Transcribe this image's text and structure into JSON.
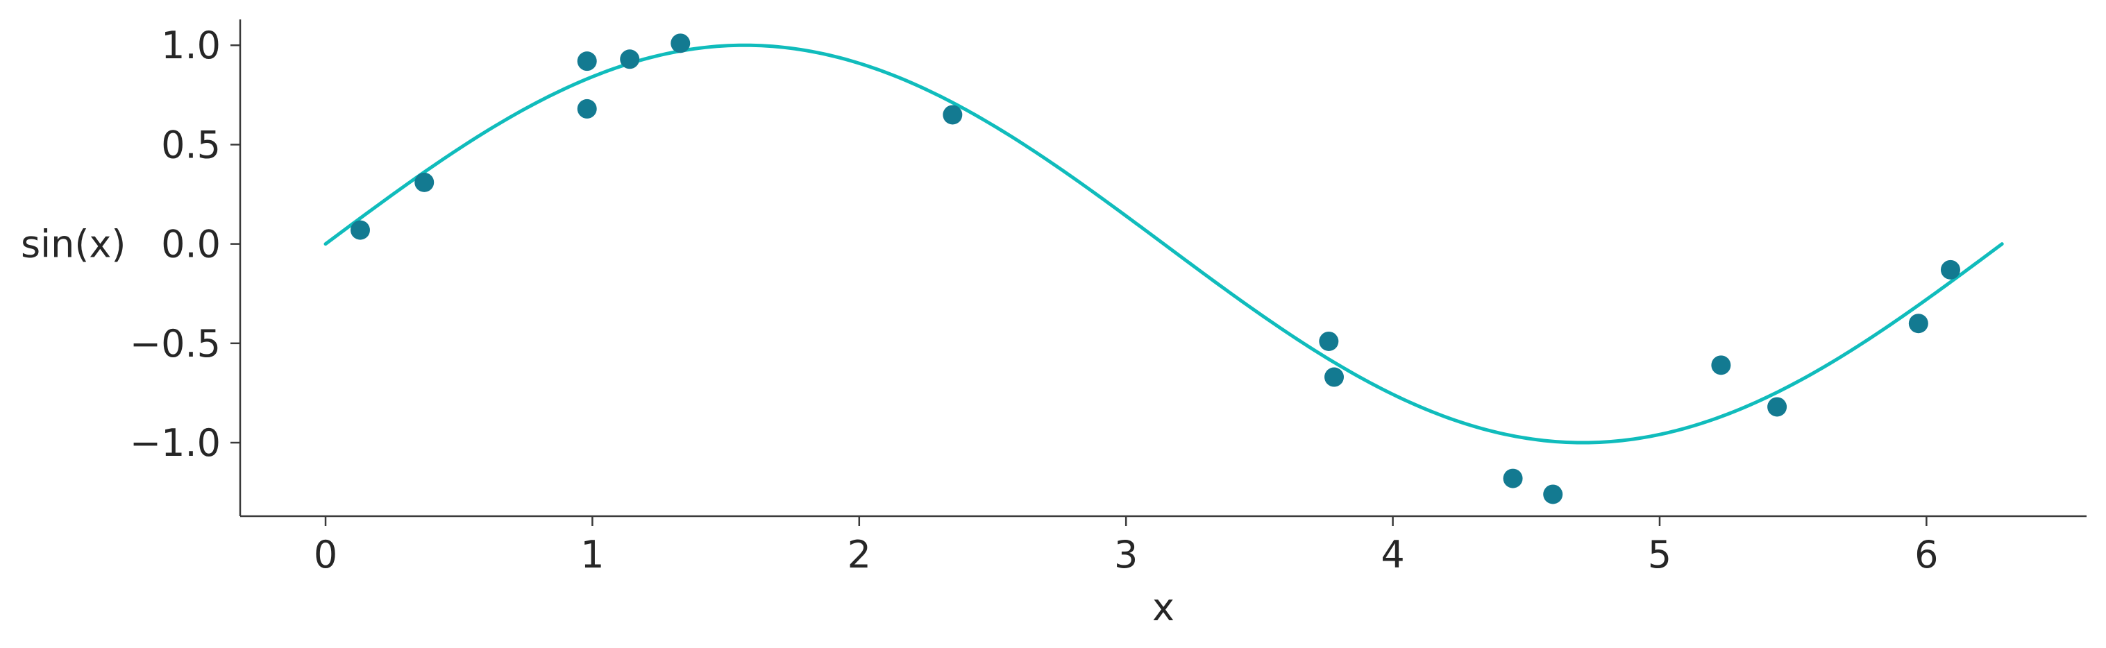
{
  "chart_data": {
    "type": "scatter",
    "xlabel": "x",
    "ylabel": "sin(x)",
    "xlim": [
      -0.32,
      6.6
    ],
    "ylim": [
      -1.37,
      1.13
    ],
    "x_ticks": [
      0,
      1,
      2,
      3,
      4,
      5,
      6
    ],
    "x_tick_labels": [
      "0",
      "1",
      "2",
      "3",
      "4",
      "5",
      "6"
    ],
    "y_ticks": [
      1.0,
      0.5,
      0.0,
      -0.5,
      -1.0
    ],
    "y_tick_labels": [
      "1.0",
      "0.5",
      "0.0",
      "−0.5",
      "−1.0"
    ],
    "grid": false,
    "series": [
      {
        "kind": "line",
        "color": "#10bcbc",
        "function": "sin",
        "x_range": [
          0,
          6.2832
        ]
      },
      {
        "kind": "scatter",
        "color": "#137a91",
        "points": [
          {
            "x": 0.13,
            "y": 0.07
          },
          {
            "x": 0.37,
            "y": 0.31
          },
          {
            "x": 0.98,
            "y": 0.92
          },
          {
            "x": 0.98,
            "y": 0.68
          },
          {
            "x": 1.14,
            "y": 0.93
          },
          {
            "x": 1.33,
            "y": 1.01
          },
          {
            "x": 2.35,
            "y": 0.65
          },
          {
            "x": 3.76,
            "y": -0.49
          },
          {
            "x": 3.78,
            "y": -0.67
          },
          {
            "x": 4.45,
            "y": -1.18
          },
          {
            "x": 4.6,
            "y": -1.26
          },
          {
            "x": 5.23,
            "y": -0.61
          },
          {
            "x": 5.44,
            "y": -0.82
          },
          {
            "x": 5.97,
            "y": -0.4
          },
          {
            "x": 6.09,
            "y": -0.13
          }
        ]
      }
    ]
  }
}
